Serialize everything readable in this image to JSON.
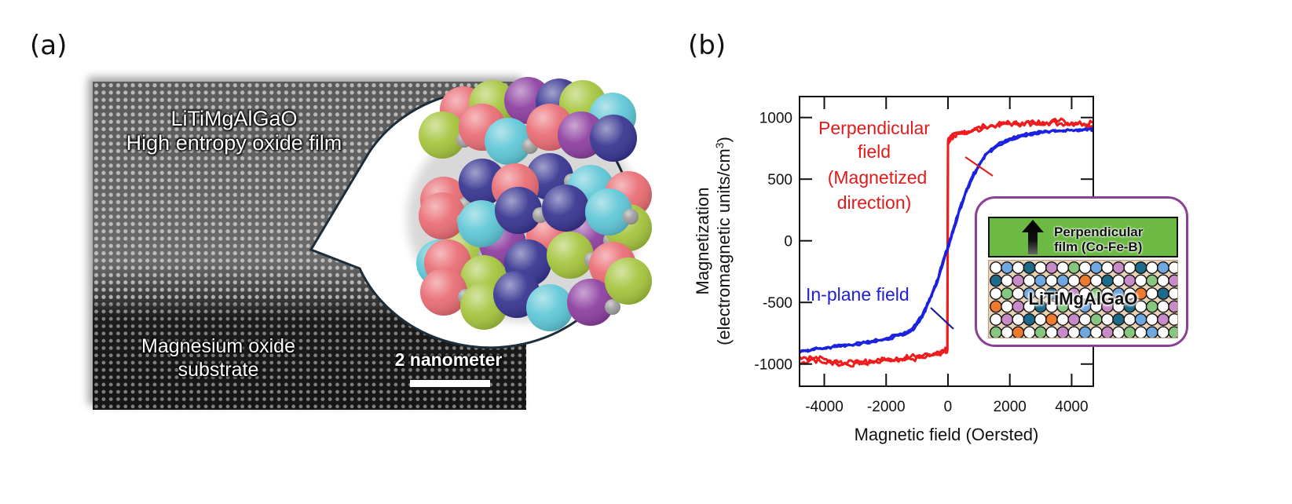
{
  "panels": {
    "a": {
      "label": "(a)",
      "film_label_line1": "LiTiMgAlGaO",
      "film_label_line2": "High entropy oxide film",
      "substrate_label_line1": "Magnesium oxide",
      "substrate_label_line2": "substrate",
      "scale_bar_label": "2 nanometer",
      "atom_colors": [
        "#a4c43a",
        "#5cc6d6",
        "#e96a72",
        "#34318f",
        "#8b3b9e",
        "#9a9a9a"
      ]
    },
    "b": {
      "label": "(b)",
      "annotation_perpendicular": [
        "Perpendicular",
        "field",
        "(Magnetized",
        "direction)"
      ],
      "annotation_inplane": "In-plane field",
      "inset": {
        "top_layer_line1": "Perpendicular",
        "top_layer_line2": "film (Co-Fe-B)",
        "bottom_layer_label": "LiTiMgAlGaO",
        "border_color": "#8b3f95",
        "top_layer_color": "#6cb944",
        "atom_colors": [
          "#ffffff",
          "#6fa8e0",
          "#1e6a8a",
          "#c78bc8",
          "#86c680",
          "#ee7a2e"
        ]
      }
    }
  },
  "chart_data": {
    "type": "line",
    "title": "",
    "xlabel": "Magnetic field (Oersted)",
    "ylabel": "Magnetization",
    "ylabel_line2_prefix": "(electromagnetic units/cm",
    "ylabel_line2_sup": "3",
    "ylabel_line2_suffix": ")",
    "xlim": [
      -4800,
      4700
    ],
    "ylim": [
      -1180,
      1170
    ],
    "xticks": [
      -4000,
      -2000,
      0,
      2000,
      4000
    ],
    "xtick_labels": [
      "-4000",
      "-2000",
      "0",
      "2000",
      "4000"
    ],
    "yticks": [
      -1000,
      -500,
      0,
      500,
      1000
    ],
    "ytick_labels": [
      "-1000",
      "-500",
      "0",
      "500",
      "1000"
    ],
    "grid": false,
    "series": [
      {
        "name": "Perpendicular field (Magnetized direction)",
        "color": "#ee1c1c",
        "loops": [
          {
            "x": [
              -4800,
              -4400,
              -4000,
              -3600,
              -3200,
              -2800,
              -2400,
              -2000,
              -1600,
              -1200,
              -800,
              -400,
              -100,
              -20,
              0,
              20,
              100,
              400,
              800,
              1200,
              1600,
              2000,
              2400,
              2800,
              3200,
              3600,
              4000,
              4400,
              4700
            ],
            "y": [
              -1000,
              -960,
              -990,
              -970,
              -1010,
              -980,
              -990,
              -960,
              -960,
              -940,
              -930,
              -910,
              -890,
              -880,
              800,
              820,
              840,
              880,
              900,
              930,
              940,
              950,
              950,
              960,
              960,
              950,
              960,
              950,
              930
            ]
          },
          {
            "x": [
              -4800,
              -4400,
              -4000,
              -3600,
              -3200,
              -2800,
              -2400,
              -2000,
              -1600,
              -1200,
              -800,
              -400,
              -100,
              -20,
              0,
              20,
              100,
              400,
              800,
              1200,
              1600,
              2000,
              2400,
              2800,
              3200,
              3600,
              4000,
              4400,
              4700
            ],
            "y": [
              -940,
              -950,
              -960,
              -1000,
              -970,
              -1000,
              -980,
              -970,
              -980,
              -960,
              -950,
              -920,
              -900,
              -890,
              790,
              815,
              830,
              870,
              890,
              920,
              945,
              955,
              960,
              950,
              955,
              975,
              950,
              945,
              960
            ]
          }
        ]
      },
      {
        "name": "In-plane field",
        "color": "#1a22e0",
        "loops": [
          {
            "x": [
              -4800,
              -4400,
              -4000,
              -3600,
              -3200,
              -2800,
              -2400,
              -2000,
              -1600,
              -1200,
              -1000,
              -800,
              -600,
              -400,
              -200,
              0,
              200,
              400,
              600,
              800,
              1000,
              1200,
              1600,
              2000,
              2400,
              2800,
              3200,
              3600,
              4000,
              4400,
              4700
            ],
            "y": [
              -900,
              -880,
              -870,
              -850,
              -840,
              -830,
              -810,
              -790,
              -760,
              -720,
              -660,
              -580,
              -470,
              -360,
              -200,
              -40,
              120,
              280,
              420,
              530,
              620,
              700,
              780,
              830,
              860,
              880,
              890,
              895,
              900,
              905,
              900
            ]
          },
          {
            "x": [
              -4800,
              -4400,
              -4000,
              -3600,
              -3200,
              -2800,
              -2400,
              -2000,
              -1600,
              -1200,
              -1000,
              -800,
              -600,
              -400,
              -200,
              0,
              200,
              400,
              600,
              800,
              1000,
              1200,
              1600,
              2000,
              2400,
              2800,
              3200,
              3600,
              4000,
              4400,
              4700
            ],
            "y": [
              -910,
              -885,
              -875,
              -860,
              -845,
              -835,
              -820,
              -800,
              -770,
              -735,
              -680,
              -600,
              -490,
              -370,
              -220,
              -60,
              100,
              260,
              400,
              510,
              600,
              690,
              770,
              820,
              850,
              870,
              885,
              890,
              898,
              900,
              905
            ]
          }
        ]
      }
    ]
  }
}
